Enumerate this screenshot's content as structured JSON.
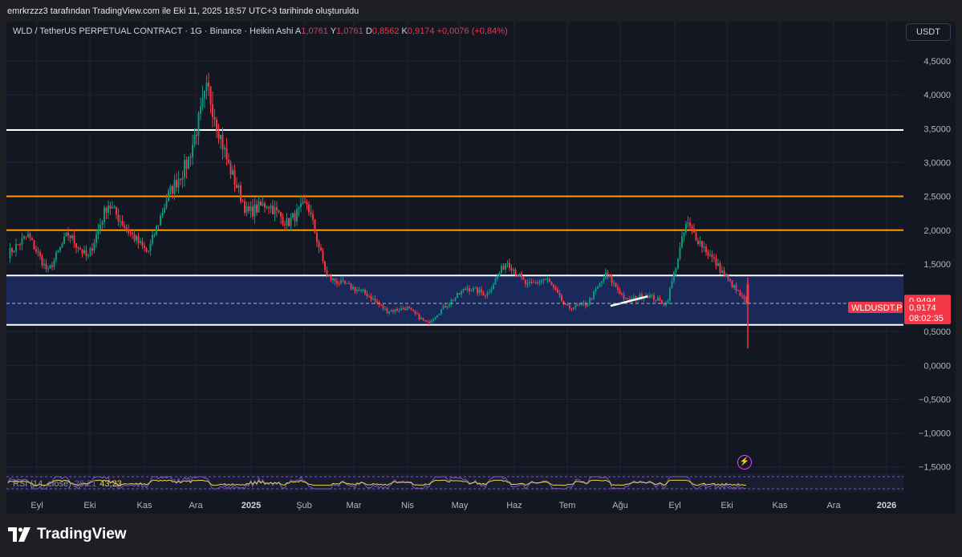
{
  "credit": "emrkrzzz3 tarafından TradingView.com ile Eki 11, 2025 18:57 UTC+3 tarihinde oluşturuldu",
  "header": {
    "symbol_text": "WLD / TetherUS PERPETUAL CONTRACT · 1G · Binance · Heikin Ashi",
    "open_label": "A",
    "open_value": "1,0761",
    "high_label": "Y",
    "high_value": "1,0761",
    "low_label": "D",
    "low_value": "0,8562",
    "close_label": "K",
    "close_value": "0,9174",
    "change": "+0,0076 (+0,84%)"
  },
  "currency_button": "USDT",
  "rsi": {
    "label": "RSI (14, close)",
    "value1": "26,21",
    "value2": "43,23"
  },
  "footer": {
    "brand": "TradingView"
  },
  "price_tags": {
    "tag1": "0,9494",
    "symbol_tag": "WLDUSDT.P",
    "tag2": "0,9174",
    "countdown": "08:02:35"
  },
  "chart_data": {
    "type": "candlestick",
    "y_axis": {
      "range": [
        -1.8,
        4.75
      ],
      "ticks": [
        {
          "value": 4.5,
          "label": "4,5000"
        },
        {
          "value": 4.0,
          "label": "4,0000"
        },
        {
          "value": 3.5,
          "label": "3,5000"
        },
        {
          "value": 3.0,
          "label": "3,0000"
        },
        {
          "value": 2.5,
          "label": "2,5000"
        },
        {
          "value": 2.0,
          "label": "2,0000"
        },
        {
          "value": 1.5,
          "label": "1,5000"
        },
        {
          "value": 0.5,
          "label": "0,5000"
        },
        {
          "value": 0.0,
          "label": "0,0000"
        },
        {
          "value": -0.5,
          "label": "−0,5000"
        },
        {
          "value": -1.0,
          "label": "−1,0000"
        },
        {
          "value": -1.5,
          "label": "−1,5000"
        }
      ]
    },
    "x_axis": {
      "labels": [
        "Eyl",
        "Eki",
        "Kas",
        "Ara",
        "2025",
        "Şub",
        "Mar",
        "Nis",
        "May",
        "Haz",
        "Tem",
        "Ağu",
        "Eyl",
        "Eki",
        "Kas",
        "Ara",
        "2026"
      ],
      "bold": [
        "2025",
        "2026"
      ]
    },
    "horizontal_lines": [
      {
        "value": 3.48,
        "color": "#ffffff"
      },
      {
        "value": 2.5,
        "color": "#ff9800"
      },
      {
        "value": 2.0,
        "color": "#ff9800"
      },
      {
        "value": 1.33,
        "color": "#ffffff"
      },
      {
        "value": 0.6,
        "color": "#ffffff"
      }
    ],
    "zone": {
      "from": 0.6,
      "to": 1.33,
      "color": "#1c2d63"
    },
    "trend_segment": {
      "x1": "Ağu",
      "x2": "Ağu",
      "y1": 0.88,
      "y2": 1.02,
      "color": "#ffffff"
    },
    "last_price": 0.9174,
    "anchors": [
      [
        "Eyl",
        1.65
      ],
      [
        "Eyl",
        1.92
      ],
      [
        "Eki",
        1.38
      ],
      [
        "Eki",
        1.95
      ],
      [
        "Eki",
        1.58
      ],
      [
        "Kas",
        2.4
      ],
      [
        "Kas",
        2.0
      ],
      [
        "Kas",
        1.66
      ],
      [
        "Ara",
        2.5
      ],
      [
        "Ara",
        3.0
      ],
      [
        "Ara",
        4.1
      ],
      [
        "Ara",
        3.0
      ],
      [
        "2025",
        2.25
      ],
      [
        "2025",
        2.4
      ],
      [
        "2025",
        2.1
      ],
      [
        "Şub",
        2.4
      ],
      [
        "Şub",
        1.3
      ],
      [
        "Şub",
        1.18
      ],
      [
        "Mar",
        1.05
      ],
      [
        "Mar",
        0.8
      ],
      [
        "Nis",
        0.85
      ],
      [
        "Nis",
        0.62
      ],
      [
        "May",
        0.9
      ],
      [
        "May",
        1.15
      ],
      [
        "May",
        1.05
      ],
      [
        "Haz",
        1.55
      ],
      [
        "Haz",
        1.18
      ],
      [
        "Haz",
        1.28
      ],
      [
        "Tem",
        0.85
      ],
      [
        "Tem",
        0.9
      ],
      [
        "Ağu",
        1.35
      ],
      [
        "Ağu",
        0.95
      ],
      [
        "Ağu",
        1.05
      ],
      [
        "Eyl",
        0.9
      ],
      [
        "Eyl",
        2.1
      ],
      [
        "Eyl",
        1.7
      ],
      [
        "Eki",
        1.3
      ],
      [
        "Eki",
        0.92
      ]
    ],
    "last_wick_low": 0.25,
    "colors": {
      "up": "#089981",
      "down": "#f23645"
    }
  }
}
